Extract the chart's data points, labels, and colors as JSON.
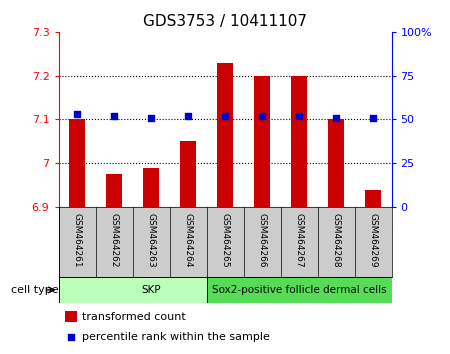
{
  "title": "GDS3753 / 10411107",
  "samples": [
    "GSM464261",
    "GSM464262",
    "GSM464263",
    "GSM464264",
    "GSM464265",
    "GSM464266",
    "GSM464267",
    "GSM464268",
    "GSM464269"
  ],
  "transformed_count": [
    7.1,
    6.975,
    6.99,
    7.05,
    7.23,
    7.2,
    7.2,
    7.1,
    6.94
  ],
  "percentile_rank": [
    53,
    52,
    51,
    52,
    52,
    52,
    52,
    51,
    51
  ],
  "ylim_left": [
    6.9,
    7.3
  ],
  "ylim_right": [
    0,
    100
  ],
  "yticks_left": [
    6.9,
    7.0,
    7.1,
    7.2,
    7.3
  ],
  "yticks_right": [
    0,
    25,
    50,
    75,
    100
  ],
  "ytick_labels_left": [
    "6.9",
    "7",
    "7.1",
    "7.2",
    "7.3"
  ],
  "ytick_labels_right": [
    "0",
    "25",
    "50",
    "75",
    "100%"
  ],
  "bar_color": "#cc0000",
  "dot_color": "#0000cc",
  "bar_width": 0.45,
  "cell_type_groups": [
    {
      "label": "SKP",
      "start": 0,
      "end": 4,
      "color": "#bbffbb"
    },
    {
      "label": "Sox2-positive follicle dermal cells",
      "start": 4,
      "end": 8,
      "color": "#55dd55"
    }
  ],
  "cell_type_label": "cell type",
  "legend_bar_label": "transformed count",
  "legend_dot_label": "percentile rank within the sample",
  "grid_color": "#000000",
  "bg_color": "#ffffff",
  "plot_bg_color": "#ffffff",
  "sample_bg_color": "#cccccc",
  "title_fontsize": 11,
  "tick_fontsize": 8,
  "sample_fontsize": 6.5,
  "legend_fontsize": 8
}
